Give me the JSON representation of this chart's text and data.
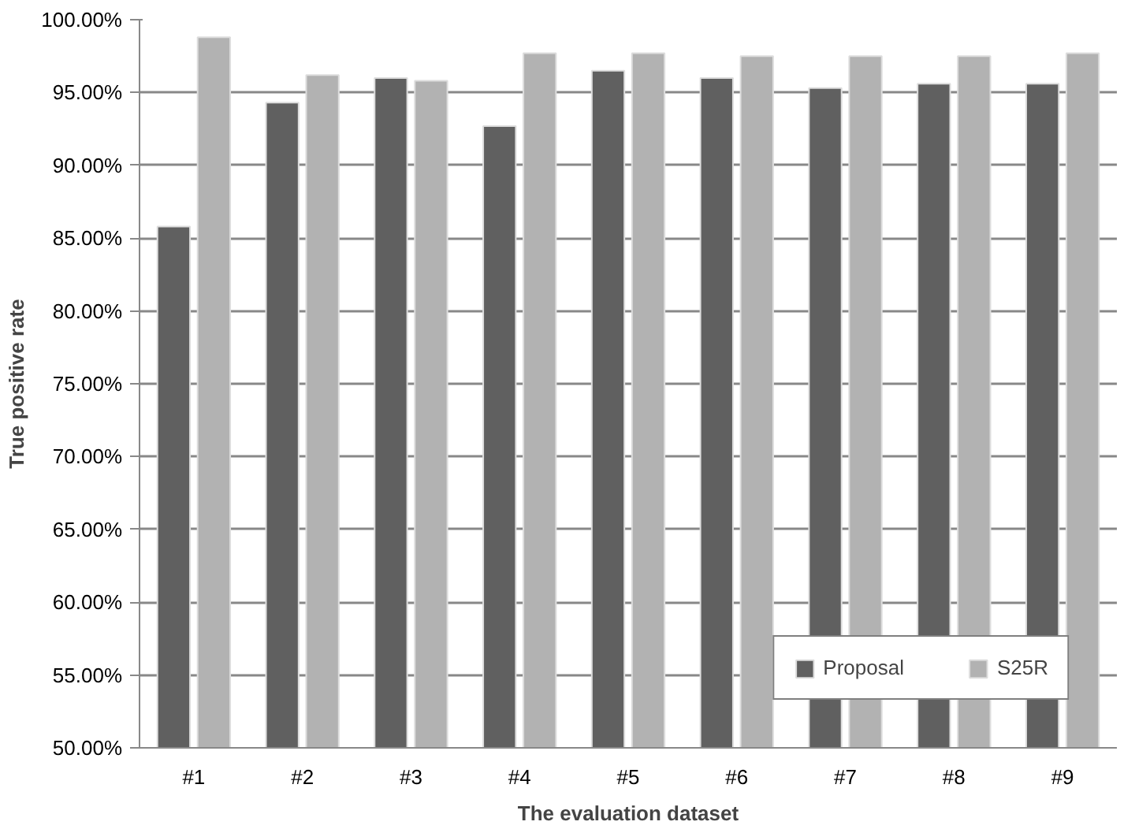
{
  "chart_data": {
    "type": "bar",
    "xlabel": "The evaluation dataset",
    "ylabel": "True positive rate",
    "categories": [
      "#1",
      "#2",
      "#3",
      "#4",
      "#5",
      "#6",
      "#7",
      "#8",
      "#9"
    ],
    "series": [
      {
        "name": "Proposal",
        "color": "#606060",
        "values": [
          85.8,
          94.3,
          96.0,
          92.7,
          96.5,
          96.0,
          95.3,
          95.6,
          95.6
        ]
      },
      {
        "name": "S25R",
        "color": "#b2b2b2",
        "values": [
          98.8,
          96.2,
          95.8,
          97.7,
          97.7,
          97.5,
          97.5,
          97.5,
          97.7
        ]
      }
    ],
    "ylim": [
      50,
      100
    ],
    "yticks": [
      {
        "value": 50,
        "label": "50.00%"
      },
      {
        "value": 55,
        "label": "55.00%"
      },
      {
        "value": 60,
        "label": "60.00%"
      },
      {
        "value": 65,
        "label": "65.00%"
      },
      {
        "value": 70,
        "label": "70.00%"
      },
      {
        "value": 75,
        "label": "75.00%"
      },
      {
        "value": 80,
        "label": "80.00%"
      },
      {
        "value": 85,
        "label": "85.00%"
      },
      {
        "value": 90,
        "label": "90.00%"
      },
      {
        "value": 95,
        "label": "95.00%"
      },
      {
        "value": 100,
        "label": "100.00%"
      }
    ],
    "grid": "y",
    "legend": "bottom right"
  }
}
